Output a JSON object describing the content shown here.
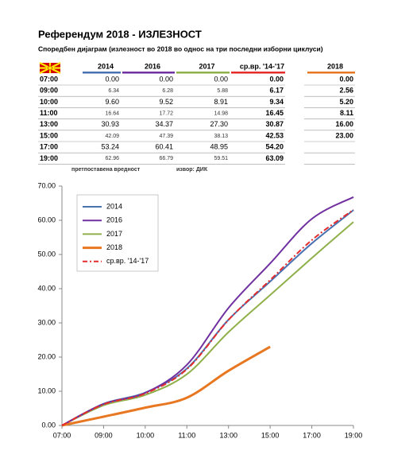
{
  "header": {
    "title": "Референдум 2018 - ИЗЛЕЗНОСТ",
    "subtitle": "Споредбен дијаграм (излезност во 2018 во однос на три последни изборни циклуси)"
  },
  "notes": [
    "претпоставена вредност",
    "извор: ДИК"
  ],
  "chart_data": {
    "type": "line",
    "categories": [
      "07:00",
      "09:00",
      "10:00",
      "11:00",
      "13:00",
      "15:00",
      "17:00",
      "19:00"
    ],
    "series": [
      {
        "name": "2014",
        "color": "#4a72b0",
        "values": [
          0,
          6.34,
          9.6,
          16.64,
          30.93,
          42.09,
          53.24,
          62.96
        ],
        "value_labels": [
          "0.00",
          "6.34",
          "9.60",
          "16.64",
          "30.93",
          "42.09",
          "53.24",
          "62.96"
        ]
      },
      {
        "name": "2016",
        "color": "#7030a0",
        "values": [
          0,
          6.28,
          9.52,
          17.72,
          34.37,
          47.39,
          60.41,
          66.79
        ],
        "value_labels": [
          "0.00",
          "6.28",
          "9.52",
          "17.72",
          "34.37",
          "47.39",
          "60.41",
          "66.79"
        ]
      },
      {
        "name": "2017",
        "color": "#8fb04a",
        "values": [
          0,
          5.88,
          8.91,
          14.98,
          27.3,
          38.13,
          48.95,
          59.51
        ],
        "value_labels": [
          "0.00",
          "5.88",
          "8.91",
          "14.98",
          "27.30",
          "38.13",
          "48.95",
          "59.51"
        ]
      },
      {
        "name": "2018",
        "color": "#e87722",
        "values": [
          0,
          2.56,
          5.2,
          8.11,
          16,
          23,
          null,
          null
        ],
        "value_labels": [
          "0.00",
          "2.56",
          "5.20",
          "8.11",
          "16.00",
          "23.00",
          null,
          null
        ]
      },
      {
        "name": "ср.вр. '14-'17",
        "color": "#e52b2b",
        "dash": true,
        "values": [
          0,
          6.17,
          9.34,
          16.45,
          30.87,
          42.53,
          54.2,
          63.09
        ],
        "value_labels": [
          "0.00",
          "6.17",
          "9.34",
          "16.45",
          "30.87",
          "42.53",
          "54.20",
          "63.09"
        ]
      }
    ],
    "ylim": [
      0,
      70
    ],
    "yticks": [
      {
        "value": 0,
        "label": "0.00"
      },
      {
        "value": 10,
        "label": "10.00"
      },
      {
        "value": 20,
        "label": "20.00"
      },
      {
        "value": 30,
        "label": "30.00"
      },
      {
        "value": 40,
        "label": "40.00"
      },
      {
        "value": 50,
        "label": "50.00"
      },
      {
        "value": 60,
        "label": "60.00"
      },
      {
        "value": 70,
        "label": "70.00"
      }
    ]
  }
}
